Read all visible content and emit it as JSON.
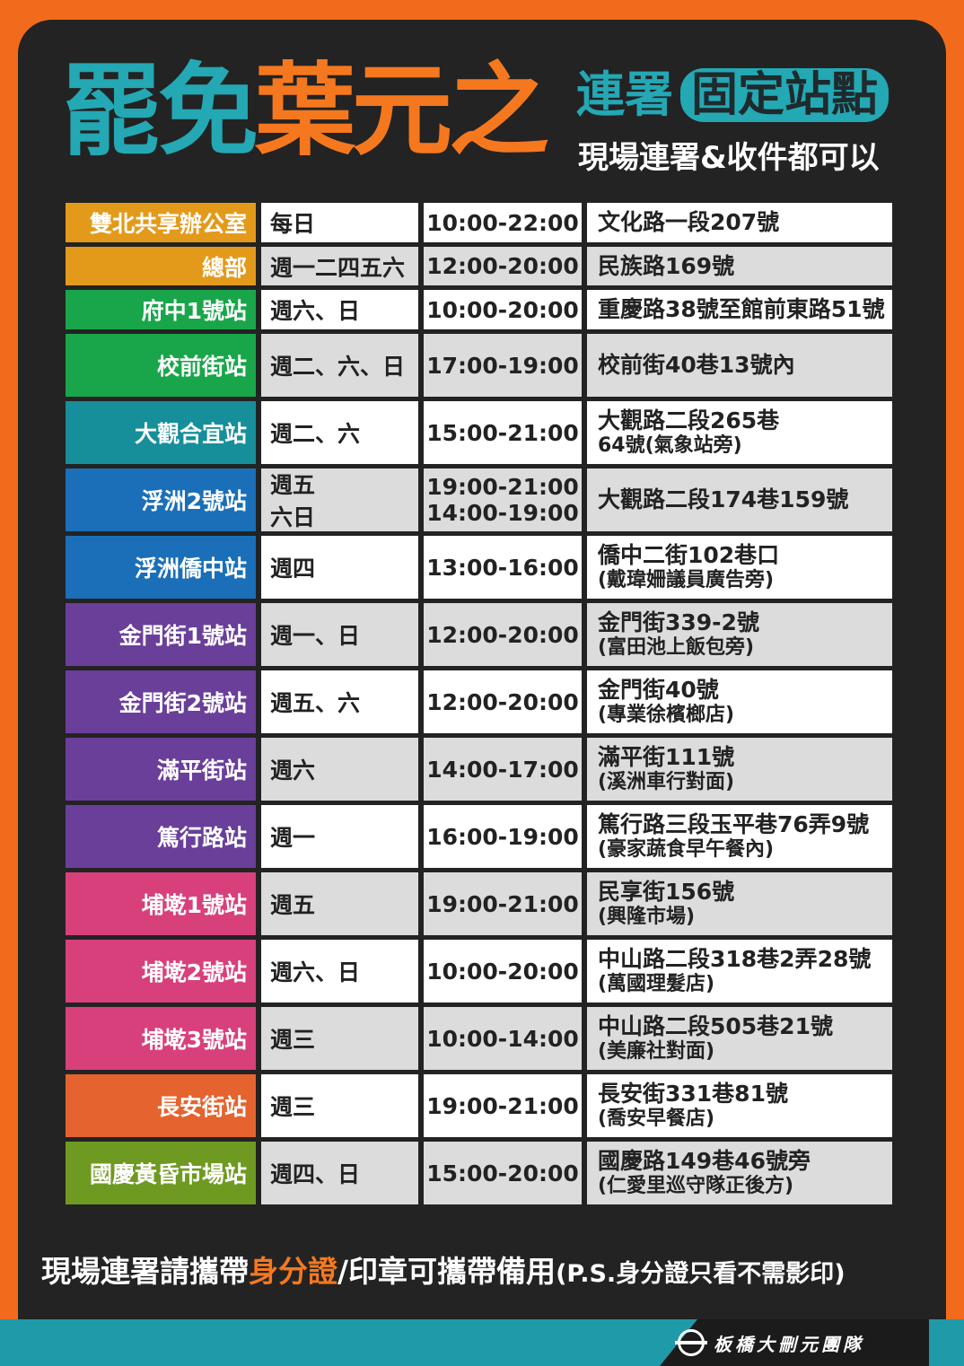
{
  "header": {
    "title_part1": "罷免",
    "title_part2": "葉元之",
    "subtitle_lian": "連署",
    "subtitle_pill": "固定站點",
    "subtitle_line2": "現場連署&收件都可以"
  },
  "colors": {
    "teal": "#23a8b4",
    "orange": "#f5781f",
    "background": "#232323",
    "border": "#f26b1d"
  },
  "stations": [
    {
      "name": "雙北共享辦公室",
      "color": "#e39a1b",
      "day": "每日",
      "time": "10:00-22:00",
      "addr1": "文化路一段207號",
      "addr2": ""
    },
    {
      "name": "總部",
      "color": "#e39a1b",
      "day": "週一二四五六",
      "time": "12:00-20:00",
      "addr1": "民族路169號",
      "addr2": ""
    },
    {
      "name": "府中1號站",
      "color": "#19a64a",
      "day": "週六、日",
      "time": "10:00-20:00",
      "addr1": "重慶路38號至館前東路51號",
      "addr2": ""
    },
    {
      "name": "校前街站",
      "color": "#19a64a",
      "day": "週二、六、日",
      "time": "17:00-19:00",
      "addr1": "校前街40巷13號內",
      "addr2": ""
    },
    {
      "name": "大觀合宜站",
      "color": "#168f9a",
      "day": "週二、六",
      "time": "15:00-21:00",
      "addr1": "大觀路二段265巷",
      "addr2": "64號(氣象站旁)"
    },
    {
      "name": "浮洲2號站",
      "color": "#1a6fb8",
      "day": "週五",
      "day2": "六日",
      "time": "19:00-21:00",
      "time2": "14:00-19:00",
      "addr1": "大觀路二段174巷159號",
      "addr2": ""
    },
    {
      "name": "浮洲僑中站",
      "color": "#1a6fb8",
      "day": "週四",
      "time": "13:00-16:00",
      "addr1": "僑中二街102巷口",
      "addr2": "(戴瑋姍議員廣告旁)"
    },
    {
      "name": "金門街1號站",
      "color": "#6a3f99",
      "day": "週一、日",
      "time": "12:00-20:00",
      "addr1": "金門街339-2號",
      "addr2": "(富田池上飯包旁)"
    },
    {
      "name": "金門街2號站",
      "color": "#6a3f99",
      "day": "週五、六",
      "time": "12:00-20:00",
      "addr1": "金門街40號",
      "addr2": "(專業徐檳榔店)"
    },
    {
      "name": "滿平街站",
      "color": "#6a3f99",
      "day": "週六",
      "time": "14:00-17:00",
      "addr1": "滿平街111號",
      "addr2": "(溪洲車行對面)"
    },
    {
      "name": "篤行路站",
      "color": "#6a3f99",
      "day": "週一",
      "time": "16:00-19:00",
      "addr1": "篤行路三段玉平巷76弄9號",
      "addr2": "(豪家蔬食早午餐內)"
    },
    {
      "name": "埔墘1號站",
      "color": "#d8407c",
      "day": "週五",
      "time": "19:00-21:00",
      "addr1": "民享街156號",
      "addr2": "(興隆市場)"
    },
    {
      "name": "埔墘2號站",
      "color": "#d8407c",
      "day": "週六、日",
      "time": "10:00-20:00",
      "addr1": "中山路二段318巷2弄28號",
      "addr2": "(萬國理髮店)"
    },
    {
      "name": "埔墘3號站",
      "color": "#d8407c",
      "day": "週三",
      "time": "10:00-14:00",
      "addr1": "中山路二段505巷21號",
      "addr2": "(美廉社對面)"
    },
    {
      "name": "長安街站",
      "color": "#e5632e",
      "day": "週三",
      "time": "19:00-21:00",
      "addr1": "長安街331巷81號",
      "addr2": "(喬安早餐店)"
    },
    {
      "name": "國慶黃昏市場站",
      "color": "#6f9a22",
      "day": "週四、日",
      "time": "15:00-20:00",
      "addr1": "國慶路149巷46號旁",
      "addr2": "(仁愛里巡守隊正後方)"
    }
  ],
  "bottom_note": {
    "part1": "現場連署請攜帶",
    "highlight": "身分證",
    "part2": "/印章可攜帶備用",
    "small": "(P.S.身分證只看不需影印)"
  },
  "footer": {
    "team": "板橋大刪元團隊",
    "team_logo_icon": "circle-bar-logo-icon"
  }
}
